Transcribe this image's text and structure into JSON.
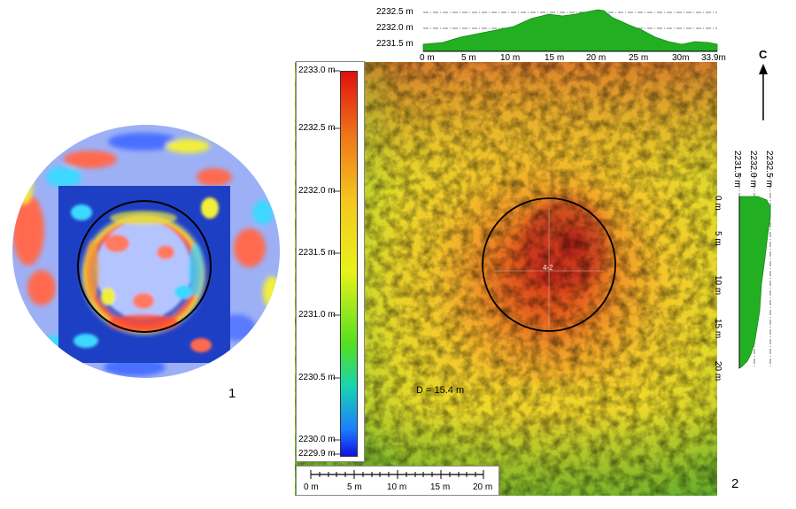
{
  "panel1": {
    "number": "1",
    "colors": {
      "low": "#1d3fc4",
      "mid": "#8fa8ff",
      "cyan": "#3cd8ff",
      "yellow": "#f2ef3a",
      "high": "#ff3b2f"
    }
  },
  "panel2": {
    "number": "2",
    "diameter_label": "D = 15.4 m",
    "center_label": "4-2",
    "north_label": "C",
    "colorbar": {
      "labels": [
        "2233.0 m",
        "2232.5 m",
        "2232.0 m",
        "2231.5 m",
        "2231.0 m",
        "2230.5 m",
        "2230.0 m",
        "2229.9 m"
      ],
      "colors": [
        "#e01010",
        "#f07818",
        "#f5c81e",
        "#e8f21a",
        "#52e020",
        "#18d4b0",
        "#1a80ff",
        "#1010e0"
      ]
    },
    "scale_bar": {
      "ticks": [
        "0 m",
        "5 m",
        "10 m",
        "15 m",
        "20 m"
      ]
    }
  },
  "top_profile": {
    "y_labels": [
      "2232.5 m",
      "2232.0 m",
      "2231.5 m"
    ],
    "x_labels": [
      "0 m",
      "5 m",
      "10 m",
      "15 m",
      "20 m",
      "25 m",
      "30m",
      "33.9m"
    ],
    "fill": "#22b022"
  },
  "side_profile": {
    "top_labels": [
      "2231.5 m",
      "2232.0 m",
      "2232.5 m"
    ],
    "left_labels": [
      "0 m",
      "5 m",
      "10 m",
      "15 m",
      "20 m"
    ],
    "fill": "#22b022"
  }
}
